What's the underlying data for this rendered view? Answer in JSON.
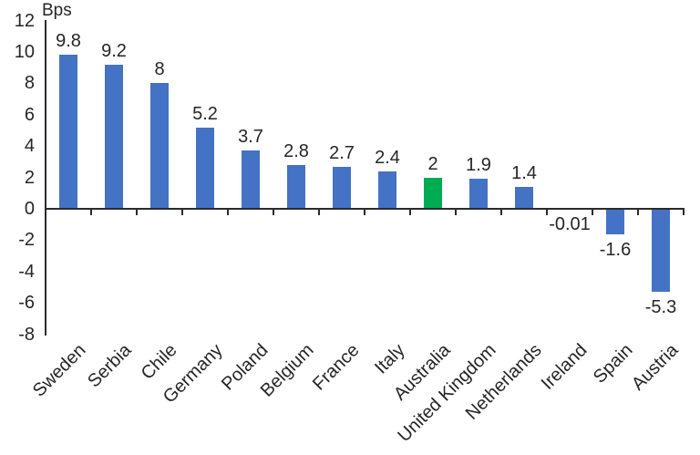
{
  "chart_data": {
    "type": "bar",
    "title": "",
    "ylabel": "Bps",
    "xlabel": "",
    "categories": [
      "Sweden",
      "Serbia",
      "Chile",
      "Germany",
      "Poland",
      "Belgium",
      "France",
      "Italy",
      "Australia",
      "United Kingdom",
      "Netherlands",
      "Ireland",
      "Spain",
      "Austria"
    ],
    "values": [
      9.8,
      9.2,
      8,
      5.2,
      3.7,
      2.8,
      2.7,
      2.4,
      2,
      1.9,
      1.4,
      -0.01,
      -1.6,
      -5.3
    ],
    "data_labels": [
      "9.8",
      "9.2",
      "8",
      "5.2",
      "3.7",
      "2.8",
      "2.7",
      "2.4",
      "2",
      "1.9",
      "1.4",
      "-0.01",
      "-1.6",
      "-5.3"
    ],
    "ylim": [
      -8,
      12
    ],
    "ytick_step": 2,
    "yticks": [
      "12",
      "10",
      "8",
      "6",
      "4",
      "2",
      "0",
      "-2",
      "-4",
      "-6",
      "-8"
    ],
    "highlight_category": "Australia",
    "legend": "none",
    "grid": false,
    "colors": {
      "bar": "#4472C4",
      "highlight": "#00AC51",
      "axis": "#2b2b2b",
      "text": "#262626",
      "background": "#FFFFFF"
    }
  }
}
